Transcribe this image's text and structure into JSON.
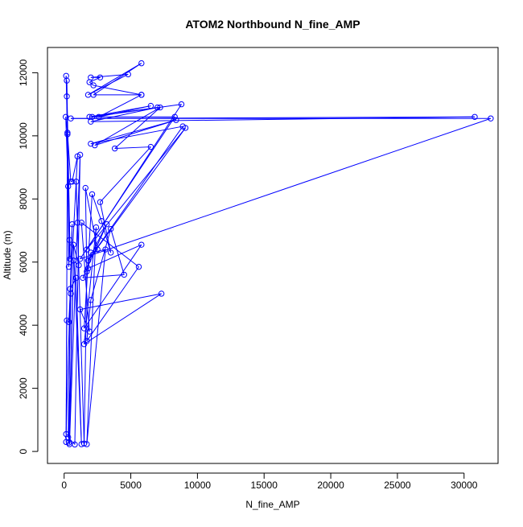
{
  "chart_data": {
    "type": "line",
    "title": "ATOM2 Northbound N_fine_AMP",
    "xlabel": "N_fine_AMP",
    "ylabel": "Altitude (m)",
    "xlim": [
      -1250,
      32550
    ],
    "ylim": [
      -380,
      12800
    ],
    "xticks": [
      0,
      5000,
      10000,
      15000,
      20000,
      25000,
      30000
    ],
    "yticks": [
      0,
      2000,
      4000,
      6000,
      8000,
      10000,
      12000
    ],
    "grid": false,
    "line_color": "#0000ff",
    "marker": "open-circle",
    "series": [
      {
        "x": [
          150,
          200,
          350,
          1000,
          600,
          500,
          250,
          120,
          300,
          200,
          150,
          450,
          200,
          350,
          400,
          250,
          150,
          600,
          500,
          300,
          800,
          1200,
          1000,
          400,
          700,
          350,
          450,
          900,
          1300,
          700,
          1100,
          900,
          1500,
          1700,
          1600,
          2500,
          1800,
          3200,
          1400,
          4500,
          3500,
          2000,
          1700,
          5600,
          1300,
          1900,
          1200,
          7300,
          1500,
          2400,
          1700,
          3100,
          2000,
          1800,
          5800,
          1500,
          2100,
          2800,
          3500,
          2700,
          6500,
          3800,
          7200,
          2300,
          8400,
          2000,
          8900,
          1800,
          9100,
          1700,
          8800,
          2100,
          8300,
          1200,
          32000,
          500,
          30800,
          2000,
          7000,
          1900,
          6500,
          2600,
          5800,
          2200,
          5800,
          1800,
          4800,
          2000,
          2700,
          1900,
          2200,
          5800
        ],
        "y": [
          300,
          4150,
          4100,
          9350,
          8550,
          8550,
          10100,
          10600,
          8400,
          11250,
          11900,
          6100,
          11750,
          5850,
          6700,
          10050,
          550,
          7200,
          5000,
          450,
          220,
          9400,
          7250,
          230,
          6050,
          280,
          5150,
          5500,
          230,
          6550,
          5900,
          8550,
          250,
          5700,
          8350,
          6400,
          6050,
          7200,
          5500,
          5600,
          7050,
          4800,
          3500,
          5850,
          7250,
          3800,
          4500,
          5000,
          3400,
          7100,
          230,
          6400,
          6300,
          5800,
          6550,
          3900,
          8150,
          7300,
          6300,
          7900,
          9650,
          9600,
          10900,
          9700,
          10500,
          9750,
          10300,
          6050,
          10250,
          6400,
          11000,
          10600,
          10600,
          6100,
          10550,
          10550,
          10600,
          10450,
          10900,
          10600,
          10950,
          10600,
          11300,
          11300,
          12300,
          11300,
          11950,
          11850,
          11850,
          11700,
          11600,
          11300
        ]
      }
    ]
  }
}
